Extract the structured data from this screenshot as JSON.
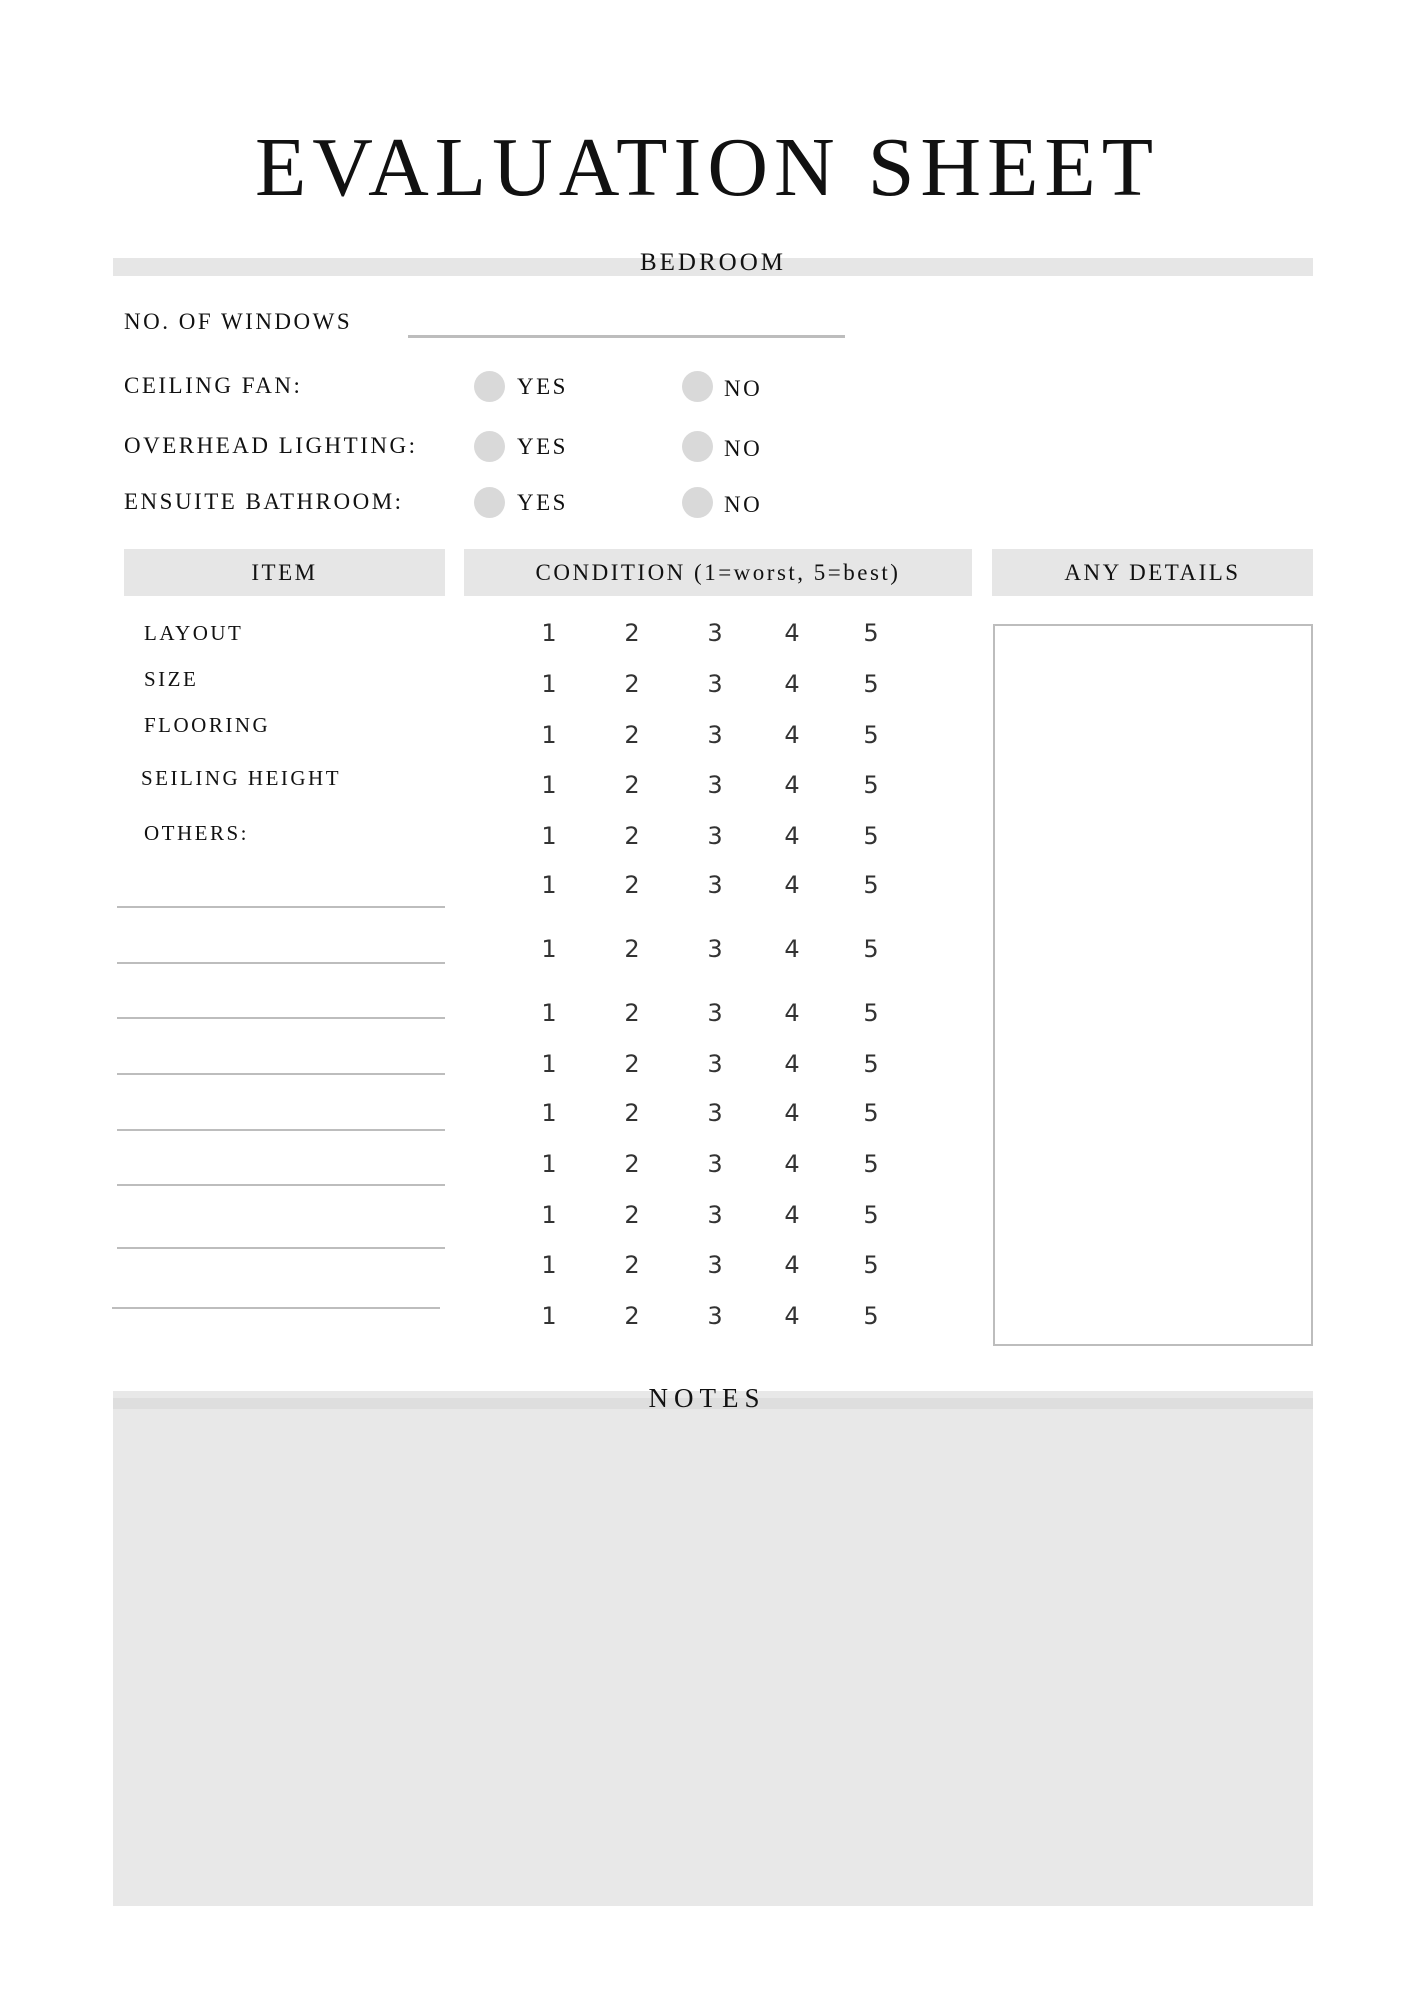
{
  "title": "EVALUATION SHEET",
  "section": "BEDROOM",
  "windows_label": "NO. OF WINDOWS",
  "yes_no_questions": [
    {
      "label": "CEILING FAN:",
      "yes": "YES",
      "no": "NO"
    },
    {
      "label": "OVERHEAD LIGHTING:",
      "yes": "YES",
      "no": "NO"
    },
    {
      "label": "ENSUITE BATHROOM:",
      "yes": "YES",
      "no": "NO"
    }
  ],
  "table": {
    "headers": {
      "item": "ITEM",
      "condition": "CONDITION (1=worst, 5=best)",
      "details": "ANY DETAILS"
    },
    "items": [
      "LAYOUT",
      "SIZE",
      "FLOORING",
      "SEILING HEIGHT",
      "OTHERS:"
    ],
    "scale": [
      "1",
      "2",
      "3",
      "4",
      "5"
    ],
    "row_count": 14
  },
  "notes_label": "NOTES",
  "colors": {
    "bar": "#e6e6e6",
    "notes_bg": "#e8e8e8",
    "radio": "#d9d9d9",
    "rule": "#bdbdbd"
  }
}
